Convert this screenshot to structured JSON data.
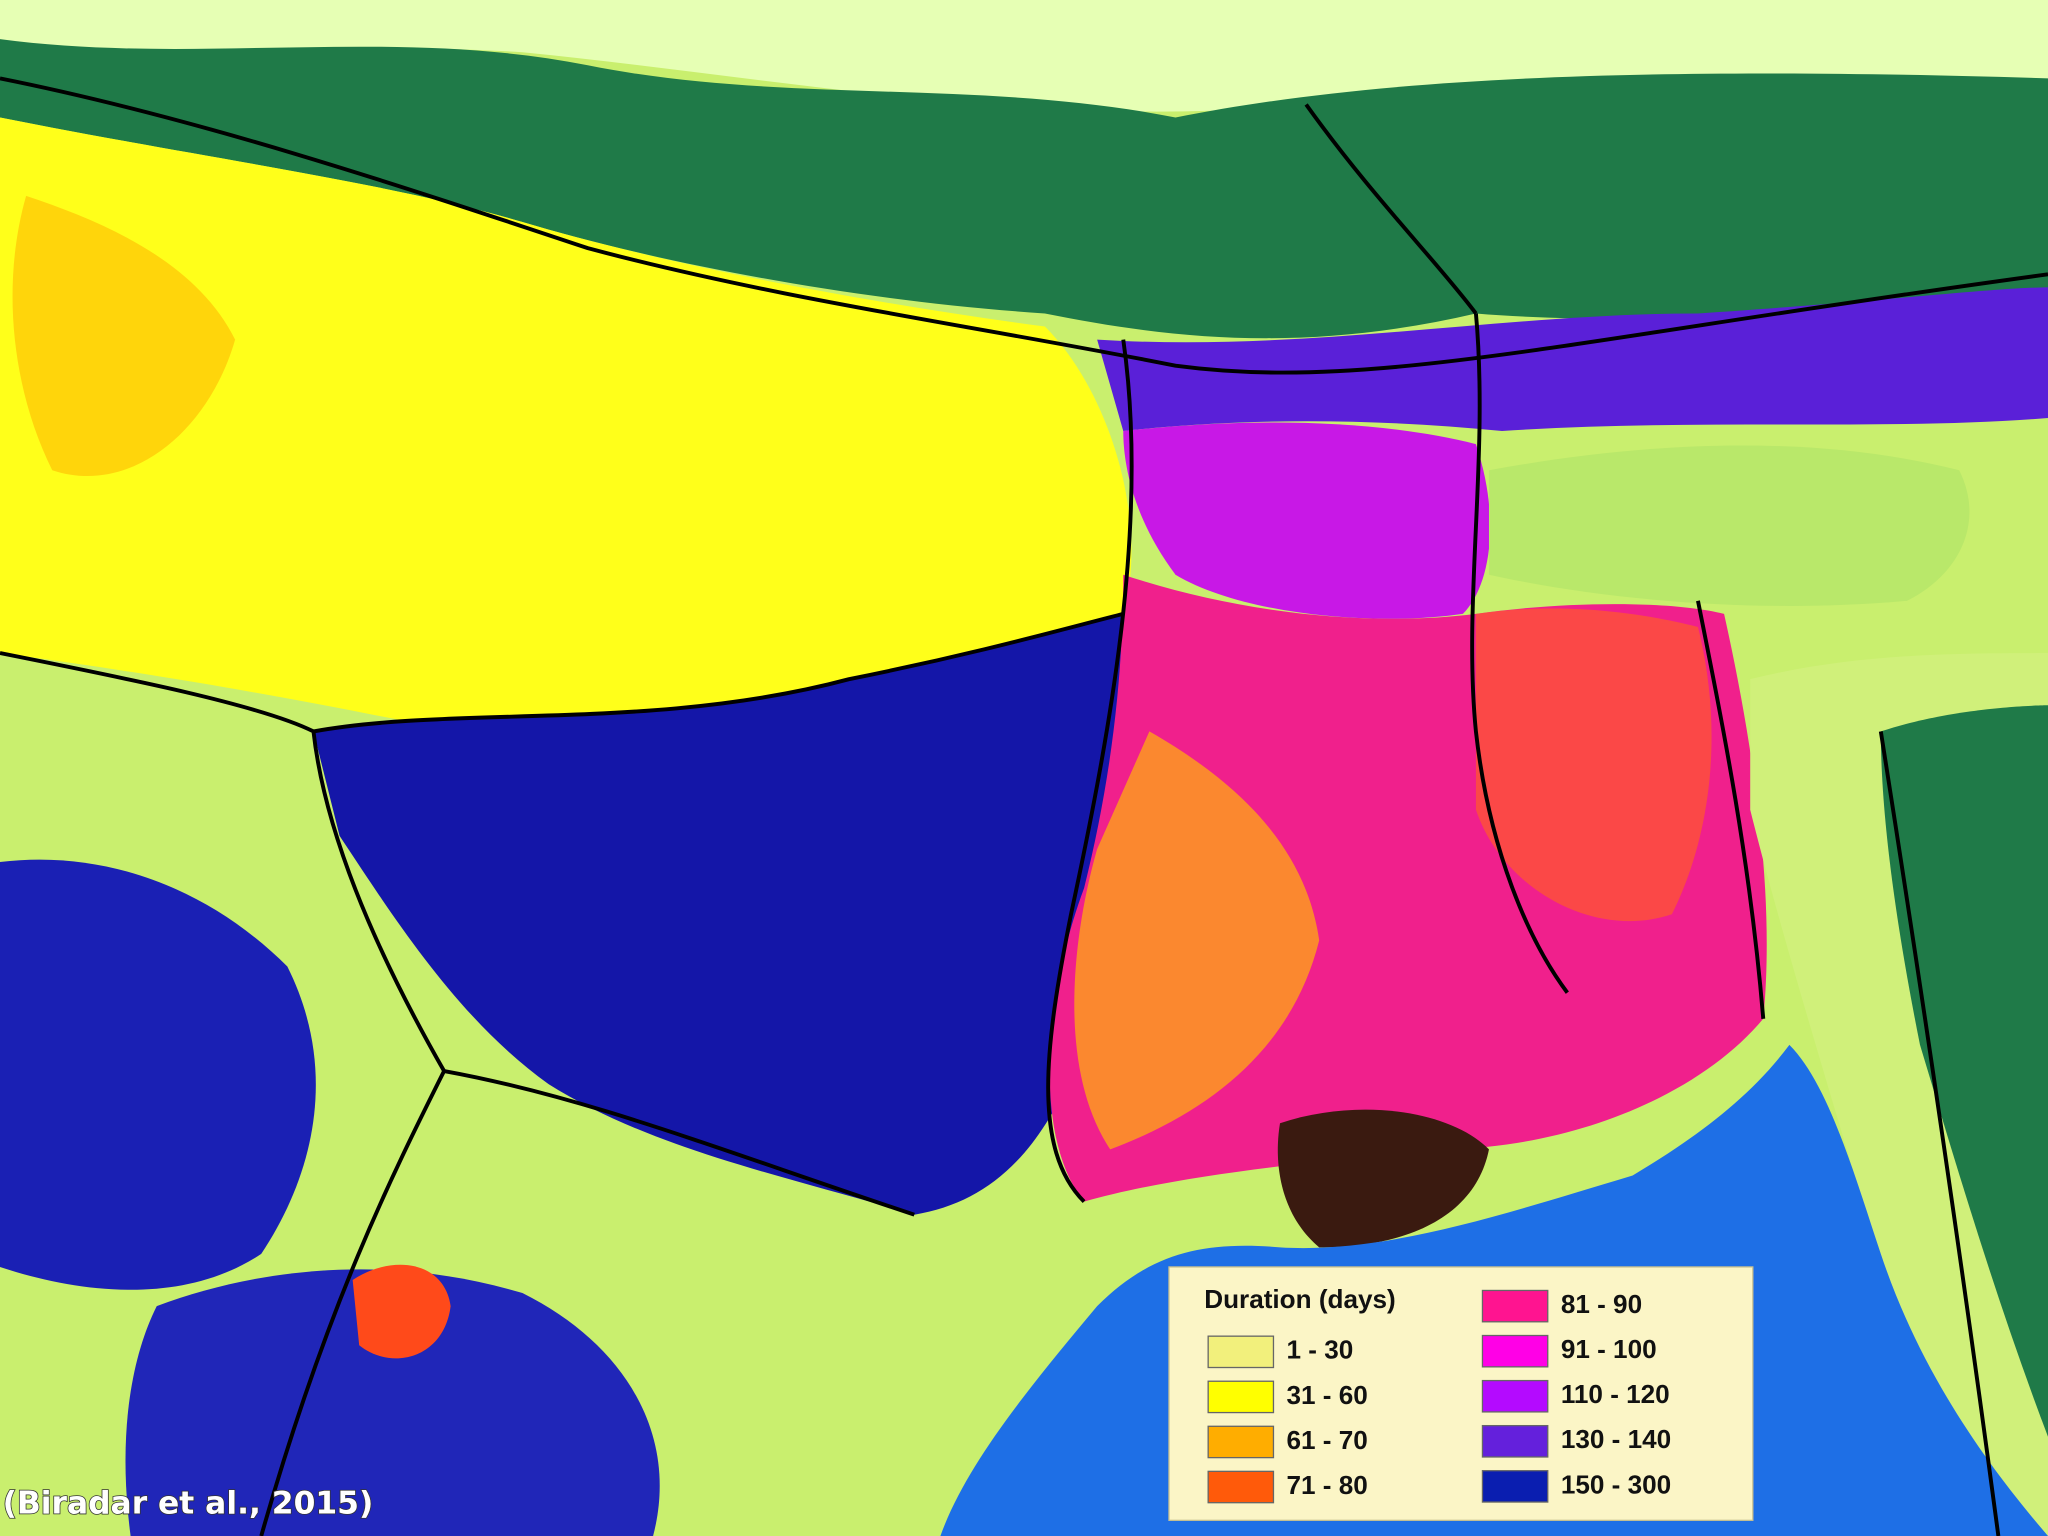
{
  "legend": {
    "title": "Duration (days)",
    "items": [
      {
        "label": "1 - 30",
        "color": "#f2f07c"
      },
      {
        "label": "31 - 60",
        "color": "#ffff00"
      },
      {
        "label": "61 - 70",
        "color": "#ffad00"
      },
      {
        "label": "71 - 80",
        "color": "#ff5a0a"
      },
      {
        "label": "81 - 90",
        "color": "#ff1490"
      },
      {
        "label": "91 - 100",
        "color": "#ff00e6"
      },
      {
        "label": "110 - 120",
        "color": "#b40aff"
      },
      {
        "label": "130 - 140",
        "color": "#6420dc"
      },
      {
        "label": "150 - 300",
        "color": "#0a1eb0"
      }
    ]
  },
  "citation": "(Biradar et al., 2015)"
}
